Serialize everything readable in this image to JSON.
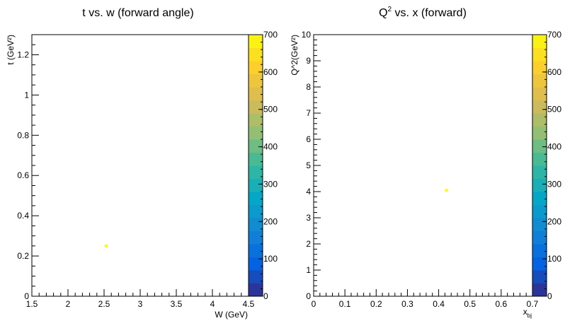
{
  "chart_data": [
    {
      "type": "heatmap",
      "title": "t vs. w (forward angle)",
      "xlabel": "W (GeV)",
      "ylabel": "t (GeV²)",
      "xlim": [
        1.5,
        4.5
      ],
      "ylim": [
        0,
        1.3
      ],
      "xticks": [
        1.5,
        2,
        2.5,
        3,
        3.5,
        4,
        4.5
      ],
      "xtick_labels": [
        "1.5",
        "2",
        "2.5",
        "3",
        "3.5",
        "4",
        "4.5"
      ],
      "yticks": [
        0,
        0.2,
        0.4,
        0.6,
        0.8,
        1,
        1.2
      ],
      "ytick_labels": [
        "0",
        "0.2",
        "0.4",
        "0.6",
        "0.8",
        "1",
        "1.2"
      ],
      "points": [
        {
          "x": 2.53,
          "y": 0.25,
          "value": 700
        }
      ],
      "colorbar": {
        "min": 0,
        "max": 700,
        "ticks": [
          0,
          100,
          200,
          300,
          400,
          500,
          600,
          700
        ],
        "tick_labels": [
          "0",
          "100",
          "200",
          "300",
          "400",
          "500",
          "600",
          "700"
        ]
      }
    },
    {
      "type": "heatmap",
      "title": "Q² vs. x (forward)",
      "xlabel": "x_bj",
      "ylabel": "Q^2(GeV²)",
      "xlim": [
        0,
        0.7
      ],
      "ylim": [
        0,
        10
      ],
      "xticks": [
        0,
        0.1,
        0.2,
        0.3,
        0.4,
        0.5,
        0.6,
        0.7
      ],
      "xtick_labels": [
        "0",
        "0.1",
        "0.2",
        "0.3",
        "0.4",
        "0.5",
        "0.6",
        "0.7"
      ],
      "yticks": [
        0,
        1,
        2,
        3,
        4,
        5,
        6,
        7,
        8,
        9,
        10
      ],
      "ytick_labels": [
        "0",
        "1",
        "2",
        "3",
        "4",
        "5",
        "6",
        "7",
        "8",
        "9",
        "10"
      ],
      "points": [
        {
          "x": 0.425,
          "y": 4.05,
          "value": 700
        }
      ],
      "colorbar": {
        "min": 0,
        "max": 700,
        "ticks": [
          0,
          100,
          200,
          300,
          400,
          500,
          600,
          700
        ],
        "tick_labels": [
          "0",
          "100",
          "200",
          "300",
          "400",
          "500",
          "600",
          "700"
        ]
      }
    }
  ]
}
